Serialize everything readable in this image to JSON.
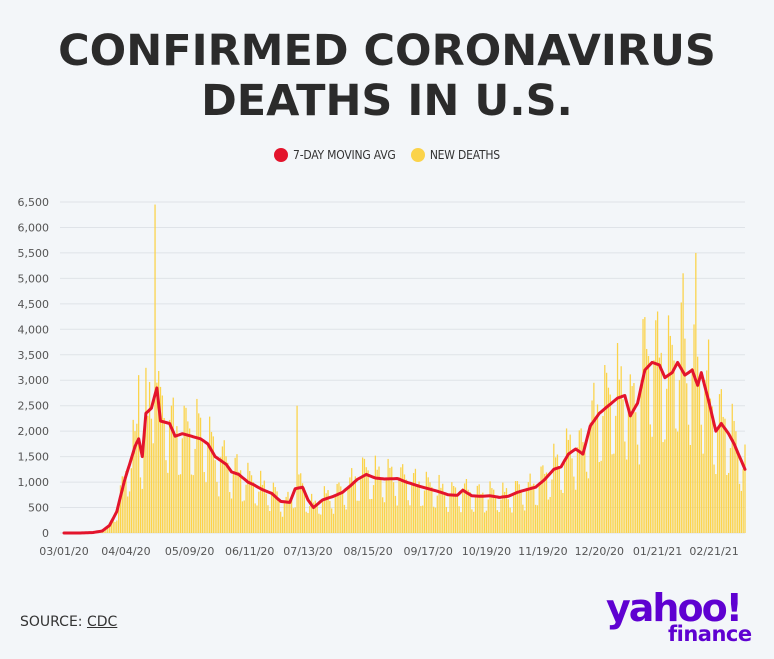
{
  "title_lines": [
    "CONFIRMED CORONAVIRUS",
    "DEATHS IN U.S."
  ],
  "legend": [
    {
      "label": "7-DAY MOVING AVG",
      "color": "#e3142c"
    },
    {
      "label": "NEW DEATHS",
      "color": "#fbd34a"
    }
  ],
  "source": {
    "prefix": "SOURCE: ",
    "link": "CDC"
  },
  "logo": {
    "word": "yahoo!",
    "sub": "finance"
  },
  "chart_data": {
    "type": "bar",
    "x_ticks": [
      "03/01/20",
      "04/04/20",
      "05/09/20",
      "06/11/20",
      "07/13/20",
      "08/15/20",
      "09/17/20",
      "10/19/20",
      "11/19/20",
      "12/20/20",
      "01/21/21",
      "02/21/21"
    ],
    "y_ticks": [
      "0",
      "500",
      "1,000",
      "1,500",
      "2,000",
      "2,500",
      "3,000",
      "3,500",
      "4,000",
      "4,500",
      "5,000",
      "5,500",
      "6,000",
      "6,500"
    ],
    "ylim": [
      0,
      6500
    ],
    "xlim": [
      "2020-03-01",
      "2021-03-10"
    ],
    "series": [
      {
        "name": "7-DAY MOVING AVG",
        "type": "line",
        "points": [
          [
            "2020-03-01",
            0
          ],
          [
            "2020-03-10",
            0
          ],
          [
            "2020-03-17",
            10
          ],
          [
            "2020-03-22",
            40
          ],
          [
            "2020-03-26",
            150
          ],
          [
            "2020-03-30",
            420
          ],
          [
            "2020-04-03",
            1000
          ],
          [
            "2020-04-06",
            1350
          ],
          [
            "2020-04-09",
            1700
          ],
          [
            "2020-04-11",
            1850
          ],
          [
            "2020-04-13",
            1500
          ],
          [
            "2020-04-15",
            2350
          ],
          [
            "2020-04-18",
            2450
          ],
          [
            "2020-04-21",
            2850
          ],
          [
            "2020-04-23",
            2200
          ],
          [
            "2020-04-28",
            2150
          ],
          [
            "2020-05-01",
            1900
          ],
          [
            "2020-05-05",
            1950
          ],
          [
            "2020-05-10",
            1900
          ],
          [
            "2020-05-15",
            1850
          ],
          [
            "2020-05-19",
            1750
          ],
          [
            "2020-05-23",
            1500
          ],
          [
            "2020-05-29",
            1350
          ],
          [
            "2020-06-01",
            1200
          ],
          [
            "2020-06-05",
            1150
          ],
          [
            "2020-06-10",
            1000
          ],
          [
            "2020-06-13",
            950
          ],
          [
            "2020-06-18",
            850
          ],
          [
            "2020-06-23",
            780
          ],
          [
            "2020-06-28",
            620
          ],
          [
            "2020-07-03",
            600
          ],
          [
            "2020-07-06",
            870
          ],
          [
            "2020-07-10",
            900
          ],
          [
            "2020-07-13",
            650
          ],
          [
            "2020-07-16",
            500
          ],
          [
            "2020-07-21",
            650
          ],
          [
            "2020-07-27",
            720
          ],
          [
            "2020-08-01",
            800
          ],
          [
            "2020-08-06",
            950
          ],
          [
            "2020-08-09",
            1050
          ],
          [
            "2020-08-14",
            1150
          ],
          [
            "2020-08-19",
            1080
          ],
          [
            "2020-08-24",
            1060
          ],
          [
            "2020-08-31",
            1070
          ],
          [
            "2020-09-05",
            1000
          ],
          [
            "2020-09-12",
            920
          ],
          [
            "2020-09-19",
            850
          ],
          [
            "2020-09-24",
            800
          ],
          [
            "2020-09-28",
            750
          ],
          [
            "2020-10-03",
            740
          ],
          [
            "2020-10-06",
            840
          ],
          [
            "2020-10-11",
            730
          ],
          [
            "2020-10-16",
            720
          ],
          [
            "2020-10-21",
            730
          ],
          [
            "2020-10-26",
            700
          ],
          [
            "2020-10-31",
            720
          ],
          [
            "2020-11-05",
            800
          ],
          [
            "2020-11-10",
            850
          ],
          [
            "2020-11-15",
            900
          ],
          [
            "2020-11-20",
            1050
          ],
          [
            "2020-11-25",
            1250
          ],
          [
            "2020-11-29",
            1300
          ],
          [
            "2020-12-03",
            1550
          ],
          [
            "2020-12-07",
            1650
          ],
          [
            "2020-12-11",
            1550
          ],
          [
            "2020-12-15",
            2100
          ],
          [
            "2020-12-20",
            2350
          ],
          [
            "2020-12-25",
            2500
          ],
          [
            "2020-12-30",
            2650
          ],
          [
            "2021-01-03",
            2700
          ],
          [
            "2021-01-06",
            2300
          ],
          [
            "2021-01-10",
            2550
          ],
          [
            "2021-01-14",
            3200
          ],
          [
            "2021-01-18",
            3350
          ],
          [
            "2021-01-22",
            3300
          ],
          [
            "2021-01-25",
            3050
          ],
          [
            "2021-01-29",
            3150
          ],
          [
            "2021-02-01",
            3350
          ],
          [
            "2021-02-05",
            3100
          ],
          [
            "2021-02-09",
            3200
          ],
          [
            "2021-02-12",
            2900
          ],
          [
            "2021-02-14",
            3150
          ],
          [
            "2021-02-18",
            2600
          ],
          [
            "2021-02-22",
            2000
          ],
          [
            "2021-02-25",
            2150
          ],
          [
            "2021-03-01",
            1950
          ],
          [
            "2021-03-04",
            1750
          ],
          [
            "2021-03-07",
            1500
          ],
          [
            "2021-03-10",
            1250
          ]
        ]
      },
      {
        "name": "NEW DEATHS",
        "type": "bar",
        "spikes": [
          [
            "2020-04-11",
            3100
          ],
          [
            "2020-04-16",
            2300
          ],
          [
            "2020-04-20",
            6450
          ],
          [
            "2020-04-24",
            2700
          ],
          [
            "2020-05-06",
            2500
          ],
          [
            "2020-05-14",
            2350
          ],
          [
            "2020-07-07",
            2500
          ],
          [
            "2021-01-13",
            4200
          ],
          [
            "2021-01-21",
            4350
          ],
          [
            "2021-02-04",
            5100
          ],
          [
            "2021-02-11",
            5500
          ],
          [
            "2021-02-18",
            3800
          ],
          [
            "2021-03-04",
            2200
          ]
        ]
      }
    ]
  }
}
